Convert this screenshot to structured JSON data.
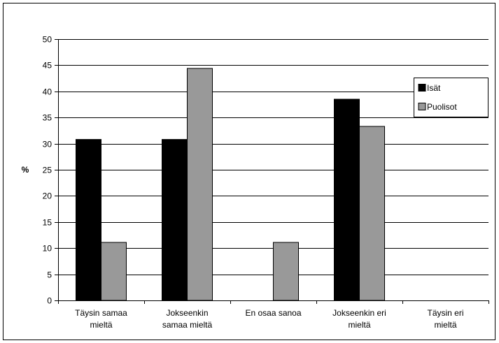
{
  "chart_data": {
    "type": "bar",
    "categories": [
      [
        "Täysin samaa",
        "mieltä"
      ],
      [
        "Jokseenkin",
        "samaa mieltä"
      ],
      [
        "En osaa sanoa"
      ],
      [
        "Jokseenkin eri",
        "mieltä"
      ],
      [
        "Täysin eri",
        "mieltä"
      ]
    ],
    "series": [
      {
        "name": "Isät",
        "values": [
          30.8,
          30.8,
          0,
          38.5,
          0
        ]
      },
      {
        "name": "Puolisot",
        "values": [
          11.1,
          44.4,
          11.1,
          33.3,
          0
        ]
      }
    ],
    "ylabel": "%",
    "ylim": [
      0,
      50
    ],
    "yticks": [
      0,
      5,
      10,
      15,
      20,
      25,
      30,
      35,
      40,
      45,
      50
    ],
    "grid": true,
    "legend_position": "right"
  },
  "colors": {
    "isat": "#000000",
    "puolisot": "#999999",
    "grid": "#000000",
    "background": "#ffffff"
  }
}
